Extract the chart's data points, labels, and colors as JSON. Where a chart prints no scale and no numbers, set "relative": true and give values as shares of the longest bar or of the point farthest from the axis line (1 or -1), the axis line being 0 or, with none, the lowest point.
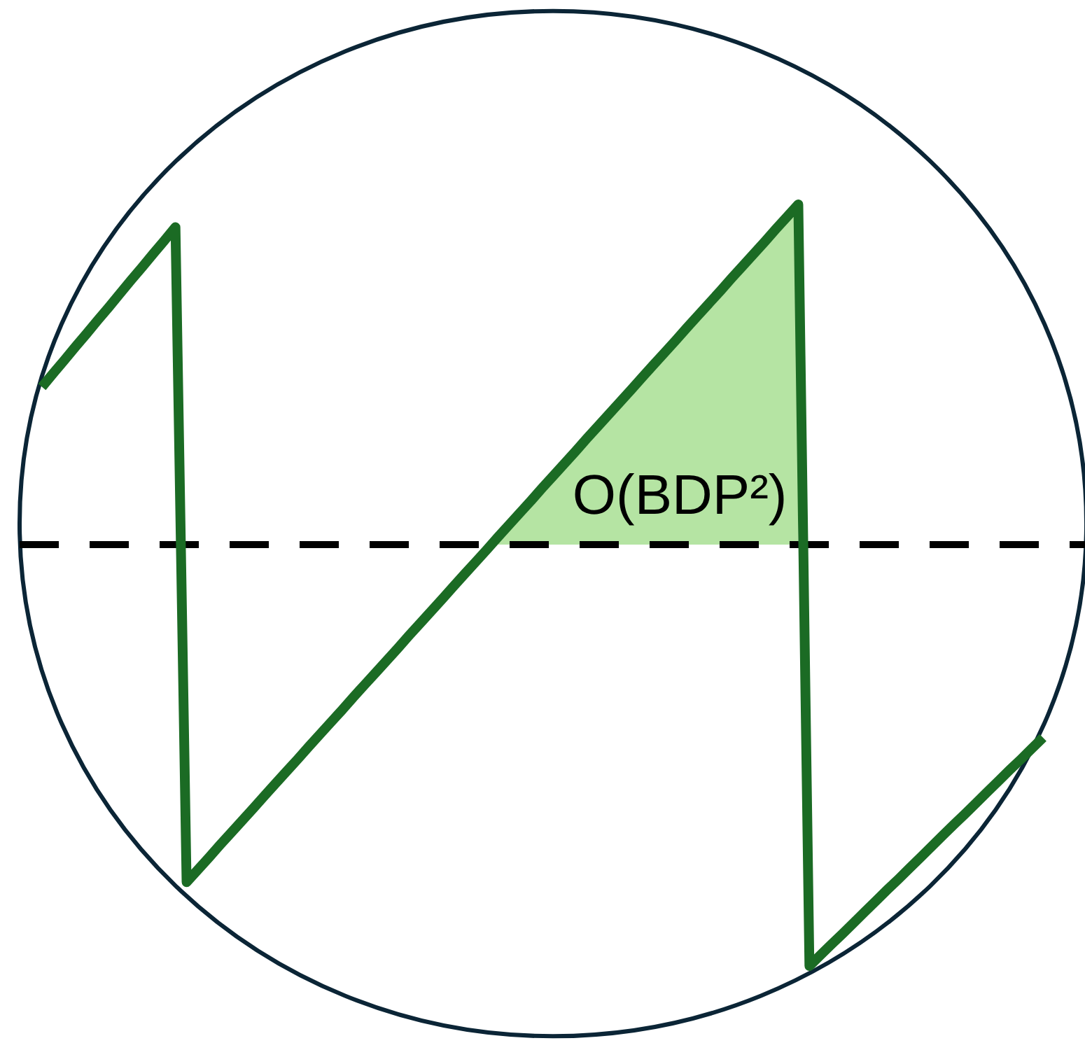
{
  "chart_data": {
    "type": "line",
    "relative": true,
    "categories": [
      null,
      null,
      null,
      null,
      null,
      null,
      null,
      null,
      null,
      null,
      null,
      null,
      null,
      null,
      null,
      null,
      null,
      null,
      null,
      null,
      null,
      null,
      null,
      null,
      null,
      null,
      null,
      null,
      null,
      null,
      null,
      null,
      null,
      null,
      null,
      null,
      null,
      null,
      null,
      null,
      null,
      null,
      null,
      null,
      null,
      null,
      null,
      null,
      null,
      null,
      null,
      null,
      null,
      null,
      null,
      null,
      null,
      null,
      null,
      null,
      null,
      null,
      null,
      null,
      null,
      null,
      null,
      null,
      null,
      null,
      null,
      null,
      null,
      null,
      null,
      null,
      null,
      null,
      null,
      null,
      null,
      null,
      null,
      null,
      null,
      null,
      null,
      null,
      null,
      null,
      null
    ],
    "series": [
      {
        "type": "line",
        "color": "#1b6b24",
        "values": [
          0.374,
          0.406,
          0.437,
          0.469,
          0.5,
          0.532,
          0.563,
          0.595,
          0.627,
          0.658,
          0.69,
          0.721,
          0.753,
          -0.801,
          -0.772,
          -0.743,
          -0.713,
          -0.684,
          -0.655,
          -0.626,
          -0.596,
          -0.567,
          -0.538,
          -0.509,
          -0.479,
          -0.45,
          -0.421,
          -0.392,
          -0.362,
          -0.333,
          -0.304,
          -0.275,
          -0.246,
          -0.216,
          -0.187,
          -0.158,
          -0.129,
          -0.099,
          -0.07,
          -0.041,
          -0.012,
          0.018,
          0.047,
          0.076,
          0.105,
          0.135,
          0.164,
          0.193,
          0.222,
          0.252,
          0.281,
          0.31,
          0.339,
          0.368,
          0.398,
          0.427,
          0.456,
          0.485,
          0.515,
          0.544,
          0.573,
          0.602,
          0.632,
          0.661,
          0.69,
          0.719,
          0.749,
          0.778,
          0.807,
          -1.0,
          -0.974,
          -0.948,
          -0.923,
          -0.897,
          -0.871,
          -0.845,
          -0.819,
          -0.794,
          -0.768,
          -0.742,
          -0.716,
          -0.69,
          -0.664,
          -0.639,
          -0.613,
          -0.587,
          -0.561,
          -0.535,
          -0.51,
          -0.484,
          -0.458
        ]
      },
      {
        "type": "area",
        "color": "#b5e4a3",
        "values": [
          null,
          null,
          null,
          null,
          null,
          null,
          null,
          null,
          null,
          null,
          null,
          null,
          null,
          null,
          null,
          null,
          null,
          null,
          null,
          null,
          null,
          null,
          null,
          null,
          null,
          null,
          null,
          null,
          null,
          null,
          null,
          null,
          null,
          null,
          null,
          null,
          null,
          null,
          null,
          null,
          null,
          0.018,
          0.047,
          0.076,
          0.105,
          0.135,
          0.164,
          0.193,
          0.222,
          0.252,
          0.281,
          0.31,
          0.339,
          0.368,
          0.398,
          0.427,
          0.456,
          0.485,
          0.515,
          0.544,
          0.573,
          0.602,
          0.632,
          0.661,
          0.69,
          0.719,
          0.749,
          0.778,
          0.807,
          null,
          null,
          null,
          null,
          null,
          null,
          null,
          null,
          null,
          null,
          null,
          null,
          null,
          null,
          null,
          null,
          null,
          null,
          null,
          null,
          null,
          null
        ]
      }
    ],
    "ref_lines": [
      {
        "axis": "y",
        "value": 0,
        "line_style": "dashed",
        "color": "#000000"
      }
    ],
    "annotations": [
      "O(BDP²)"
    ]
  }
}
